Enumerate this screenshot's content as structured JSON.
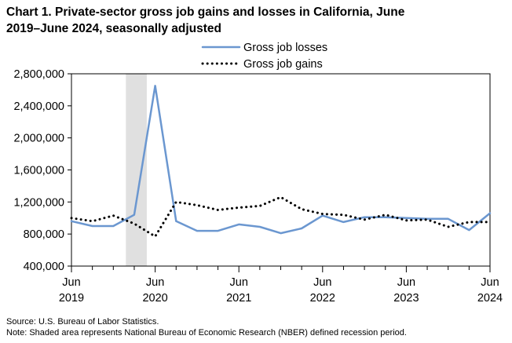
{
  "title_line1": "Chart 1. Private-sector gross job gains and losses in California, June",
  "title_line2": "2019–June 2024, seasonally adjusted",
  "source": "Source: U.S. Bureau of Labor Statistics.",
  "note": "Note: Shaded area represents National Bureau of Economic Research (NBER) defined  recession period.",
  "chart_data": {
    "type": "line",
    "x": [
      "Jun 2019",
      "Sep 2019",
      "Dec 2019",
      "Mar 2020",
      "Jun 2020",
      "Sep 2020",
      "Dec 2020",
      "Mar 2021",
      "Jun 2021",
      "Sep 2021",
      "Dec 2021",
      "Mar 2022",
      "Jun 2022",
      "Sep 2022",
      "Dec 2022",
      "Mar 2023",
      "Jun 2023",
      "Sep 2023",
      "Dec 2023",
      "Mar 2024",
      "Jun 2024"
    ],
    "series": [
      {
        "name": "Gross job losses",
        "style": "solid",
        "color": "#6b97d0",
        "values": [
          960000,
          900000,
          900000,
          1040000,
          2650000,
          960000,
          840000,
          840000,
          920000,
          890000,
          810000,
          870000,
          1030000,
          950000,
          1010000,
          1010000,
          1000000,
          990000,
          990000,
          850000,
          1060000
        ]
      },
      {
        "name": "Gross job gains",
        "style": "dotted",
        "color": "#000000",
        "values": [
          1000000,
          960000,
          1030000,
          930000,
          770000,
          1200000,
          1160000,
          1100000,
          1130000,
          1150000,
          1260000,
          1110000,
          1050000,
          1040000,
          980000,
          1040000,
          970000,
          980000,
          890000,
          950000,
          950000
        ]
      }
    ],
    "ylim": [
      400000,
      2800000
    ],
    "yticks": [
      "400,000",
      "800,000",
      "1,200,000",
      "1,600,000",
      "2,000,000",
      "2,400,000",
      "2,800,000"
    ],
    "ytick_values": [
      400000,
      800000,
      1200000,
      1600000,
      2000000,
      2400000,
      2800000
    ],
    "xtick_labels": [
      {
        "index": 0,
        "month": "Jun",
        "year": "2019"
      },
      {
        "index": 4,
        "month": "Jun",
        "year": "2020"
      },
      {
        "index": 8,
        "month": "Jun",
        "year": "2021"
      },
      {
        "index": 12,
        "month": "Jun",
        "year": "2022"
      },
      {
        "index": 16,
        "month": "Jun",
        "year": "2023"
      },
      {
        "index": 20,
        "month": "Jun",
        "year": "2024"
      }
    ],
    "recession_band": {
      "start_index": 2.6,
      "end_index": 3.6,
      "color": "#e0e0e0"
    },
    "legend_position": "top-center",
    "grid": false
  }
}
